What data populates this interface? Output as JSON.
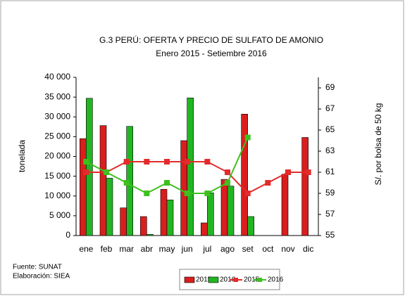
{
  "chart_data": {
    "type": "combo",
    "title": "G.3  PERÚ: OFERTA Y PRECIO DE SULFATO DE AMONIO",
    "subtitle": "Enero 2015  - Setiembre 2016",
    "ylabel": "tonelada",
    "y2label": "S/.  por bolsa de 50 kg",
    "notes": [
      "Fuente: SUNAT",
      "Elaboración: SIEA"
    ],
    "categories": [
      "ene",
      "feb",
      "mar",
      "abr",
      "may",
      "jun",
      "jul",
      "ago",
      "set",
      "oct",
      "nov",
      "dic"
    ],
    "series": [
      {
        "name": "2015",
        "type": "bar",
        "color": "#d91e1e",
        "values": [
          24500,
          27800,
          7000,
          4800,
          11700,
          24000,
          3200,
          14200,
          30700,
          null,
          15500,
          24800
        ]
      },
      {
        "name": "2016",
        "type": "bar",
        "color": "#22b522",
        "values": [
          34700,
          14500,
          27600,
          300,
          9000,
          34800,
          10800,
          12500,
          4800,
          null,
          null,
          null
        ]
      },
      {
        "name": "2015",
        "type": "line",
        "axis": "y2",
        "color": "#e32b2b",
        "values": [
          61,
          61,
          62,
          62,
          62,
          62,
          62,
          61,
          59,
          60,
          61,
          61
        ]
      },
      {
        "name": "2016",
        "type": "line",
        "axis": "y2",
        "color": "#3ec01e",
        "values": [
          62,
          61,
          60,
          59,
          60,
          59,
          59,
          60,
          64.3,
          null,
          null,
          null
        ]
      }
    ],
    "ylim": [
      0,
      40000
    ],
    "yticks": [
      0,
      {
        "value": 5000,
        "label": "5 000"
      },
      {
        "value": 10000,
        "label": "10 000"
      },
      {
        "value": 15000,
        "label": "15 000"
      },
      {
        "value": 20000,
        "label": "20 000"
      },
      {
        "value": 25000,
        "label": "25 000"
      },
      {
        "value": 30000,
        "label": "30 000"
      },
      {
        "value": 35000,
        "label": "35 000"
      },
      {
        "value": 40000,
        "label": "40 000"
      }
    ],
    "y2lim": [
      55,
      70
    ],
    "y2ticks": [
      55,
      57,
      59,
      61,
      63,
      65,
      67,
      69
    ],
    "legend": "bottom"
  }
}
